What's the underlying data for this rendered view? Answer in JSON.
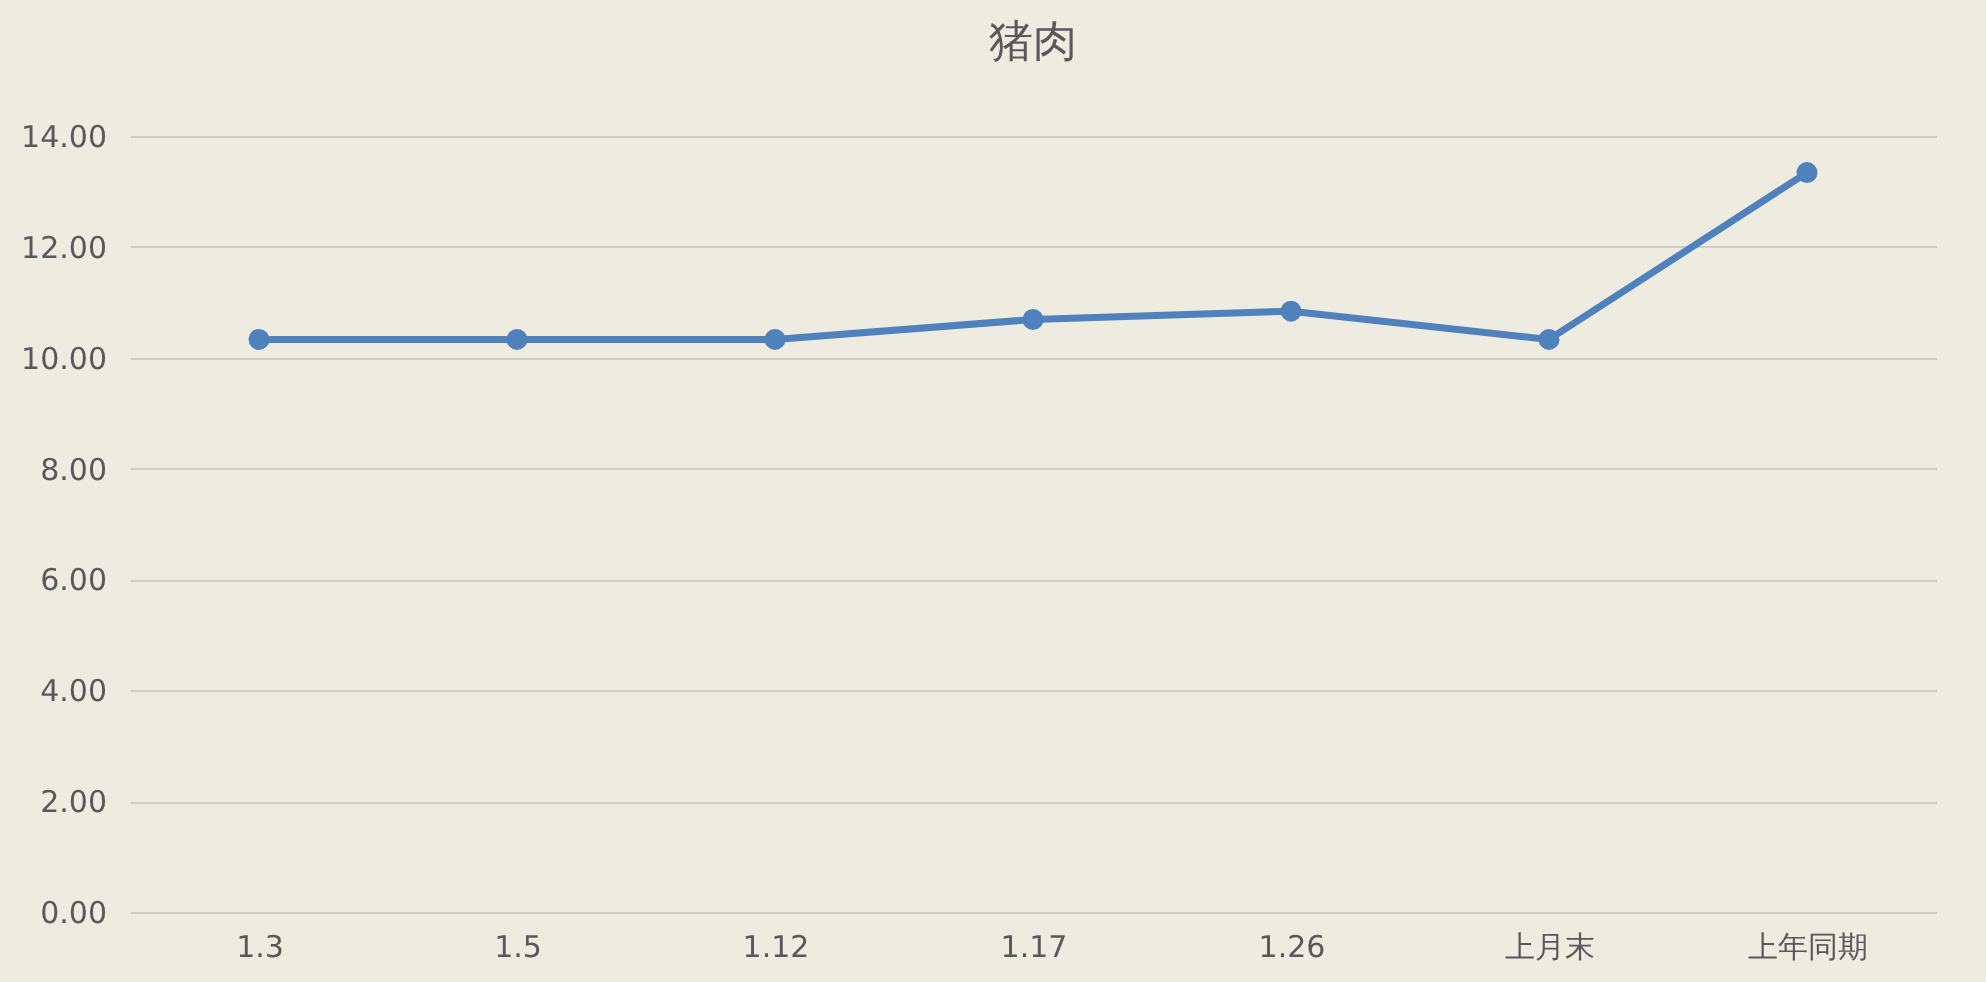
{
  "chart_data": {
    "type": "line",
    "title": "猪肉",
    "categories": [
      "1.3",
      "1.5",
      "1.12",
      "1.17",
      "1.26",
      "上月末",
      "上年同期"
    ],
    "series": [
      {
        "color": "#4f81bd",
        "values": [
          10.33,
          10.33,
          10.33,
          10.69,
          10.84,
          10.33,
          13.34
        ]
      }
    ],
    "ylim": [
      0,
      14
    ],
    "yticks": [
      {
        "value": 0,
        "label": "0.00"
      },
      {
        "value": 2,
        "label": "2.00"
      },
      {
        "value": 4,
        "label": "4.00"
      },
      {
        "value": 6,
        "label": "6.00"
      },
      {
        "value": 8,
        "label": "8.00"
      },
      {
        "value": 10,
        "label": "10.00"
      },
      {
        "value": 12,
        "label": "12.00"
      },
      {
        "value": 14,
        "label": "14.00"
      }
    ],
    "grid": "y",
    "marker": "circle",
    "line_style": "solid",
    "legend": false
  }
}
